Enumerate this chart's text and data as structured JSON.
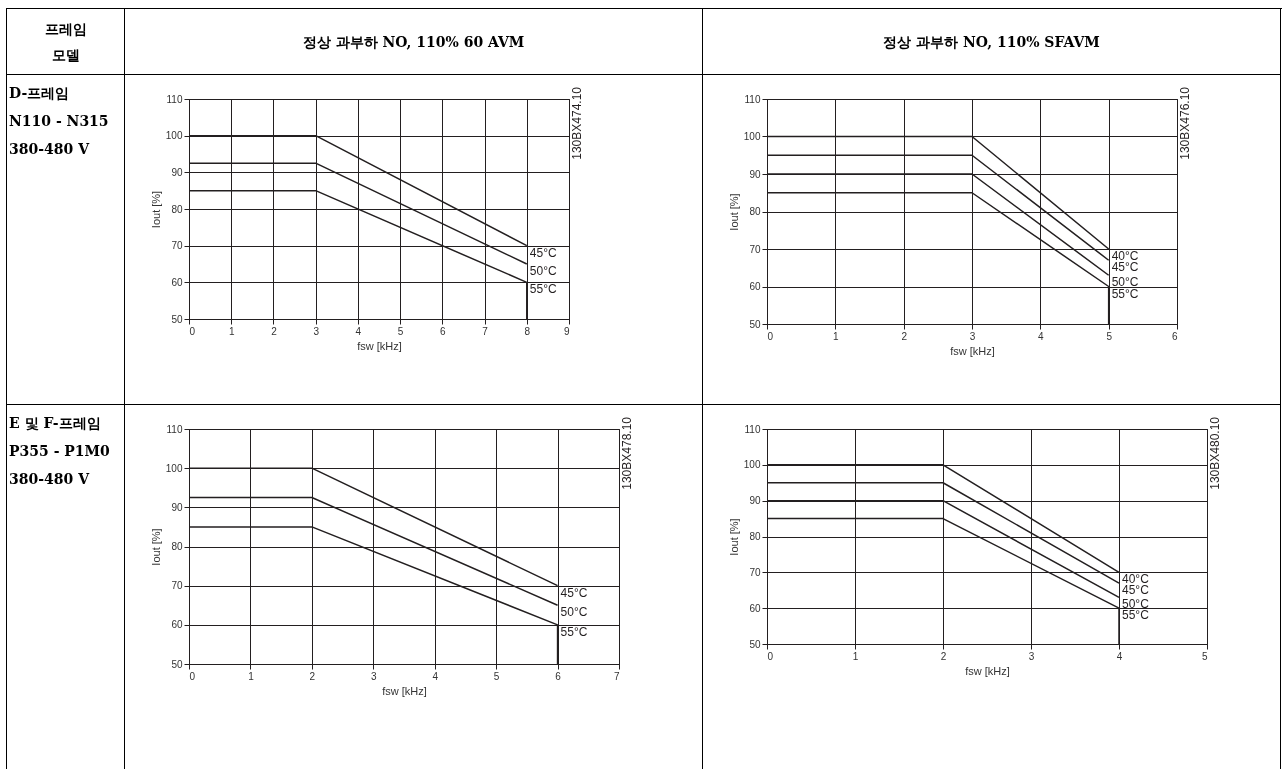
{
  "chart_data": [
    {
      "type": "line",
      "title": "정상 과부하 NO, 110% 60 AVM",
      "xlabel": "fsw [kHz]",
      "ylabel": "Iout [%]",
      "xlim": [
        0,
        9
      ],
      "xticks": [
        0,
        1,
        2,
        3,
        4,
        5,
        6,
        7,
        8,
        9
      ],
      "ylim": [
        50,
        110
      ],
      "yticks": [
        50,
        60,
        70,
        80,
        90,
        100,
        110
      ],
      "grid": true,
      "marker": "none",
      "line_style": "solid",
      "annotations": [
        "프레임\n모델",
        "D-프레임\nN110 - N315\n380-480 V",
        "130BX474.10"
      ],
      "series": [
        {
          "name": "45°C",
          "color": "#231f20",
          "x": [
            0,
            3,
            8
          ],
          "values": [
            100,
            100,
            70
          ]
        },
        {
          "name": "50°C",
          "color": "#231f20",
          "x": [
            0,
            3,
            8
          ],
          "values": [
            92.5,
            92.5,
            65
          ]
        },
        {
          "name": "55°C",
          "color": "#231f20",
          "x": [
            0,
            3,
            8,
            8
          ],
          "values": [
            85,
            85,
            60,
            50
          ]
        }
      ]
    },
    {
      "type": "line",
      "title": "정상 과부하 NO, 110% SFAVM",
      "xlabel": "fsw [kHz]",
      "ylabel": "Iout [%]",
      "xlim": [
        0,
        6
      ],
      "xticks": [
        0,
        1,
        2,
        3,
        4,
        5,
        6
      ],
      "ylim": [
        50,
        110
      ],
      "yticks": [
        50,
        60,
        70,
        80,
        90,
        100,
        110
      ],
      "grid": true,
      "marker": "none",
      "line_style": "solid",
      "annotations": [
        "130BX476.10"
      ],
      "series": [
        {
          "name": "40°C",
          "color": "#231f20",
          "x": [
            0,
            3,
            5
          ],
          "values": [
            100,
            100,
            70
          ]
        },
        {
          "name": "45°C",
          "color": "#231f20",
          "x": [
            0,
            3,
            5
          ],
          "values": [
            95,
            95,
            67
          ]
        },
        {
          "name": "50°C",
          "color": "#231f20",
          "x": [
            0,
            3,
            5
          ],
          "values": [
            90,
            90,
            63
          ]
        },
        {
          "name": "55°C",
          "color": "#231f20",
          "x": [
            0,
            3,
            5,
            5
          ],
          "values": [
            85,
            85,
            60,
            50
          ]
        }
      ]
    },
    {
      "type": "line",
      "xlabel": "fsw [kHz]",
      "ylabel": "Iout [%]",
      "xlim": [
        0,
        7
      ],
      "xticks": [
        0,
        1,
        2,
        3,
        4,
        5,
        6,
        7
      ],
      "ylim": [
        50,
        110
      ],
      "yticks": [
        50,
        60,
        70,
        80,
        90,
        100,
        110
      ],
      "grid": true,
      "marker": "none",
      "line_style": "solid",
      "annotations": [
        "E 및 F-프레임\nP355 - P1M0\n380-480 V",
        "130BX478.10"
      ],
      "series": [
        {
          "name": "45°C",
          "color": "#231f20",
          "x": [
            0,
            2,
            6
          ],
          "values": [
            100,
            100,
            70
          ]
        },
        {
          "name": "50°C",
          "color": "#231f20",
          "x": [
            0,
            2,
            6
          ],
          "values": [
            92.5,
            92.5,
            65
          ]
        },
        {
          "name": "55°C",
          "color": "#231f20",
          "x": [
            0,
            2,
            6,
            6
          ],
          "values": [
            85,
            85,
            60,
            50
          ]
        }
      ]
    },
    {
      "type": "line",
      "xlabel": "fsw [kHz]",
      "ylabel": "Iout [%]",
      "xlim": [
        0,
        5
      ],
      "xticks": [
        0,
        1,
        2,
        3,
        4,
        5
      ],
      "ylim": [
        50,
        110
      ],
      "yticks": [
        50,
        60,
        70,
        80,
        90,
        100,
        110
      ],
      "grid": true,
      "marker": "none",
      "line_style": "solid",
      "annotations": [
        "130BX480.10"
      ],
      "series": [
        {
          "name": "40°C",
          "color": "#231f20",
          "x": [
            0,
            2,
            4
          ],
          "values": [
            100,
            100,
            70
          ]
        },
        {
          "name": "45°C",
          "color": "#231f20",
          "x": [
            0,
            2,
            4
          ],
          "values": [
            95,
            95,
            67
          ]
        },
        {
          "name": "50°C",
          "color": "#231f20",
          "x": [
            0,
            2,
            4
          ],
          "values": [
            90,
            90,
            63
          ]
        },
        {
          "name": "55°C",
          "color": "#231f20",
          "x": [
            0,
            2,
            4,
            4
          ],
          "values": [
            85,
            85,
            60,
            50
          ]
        }
      ]
    }
  ]
}
